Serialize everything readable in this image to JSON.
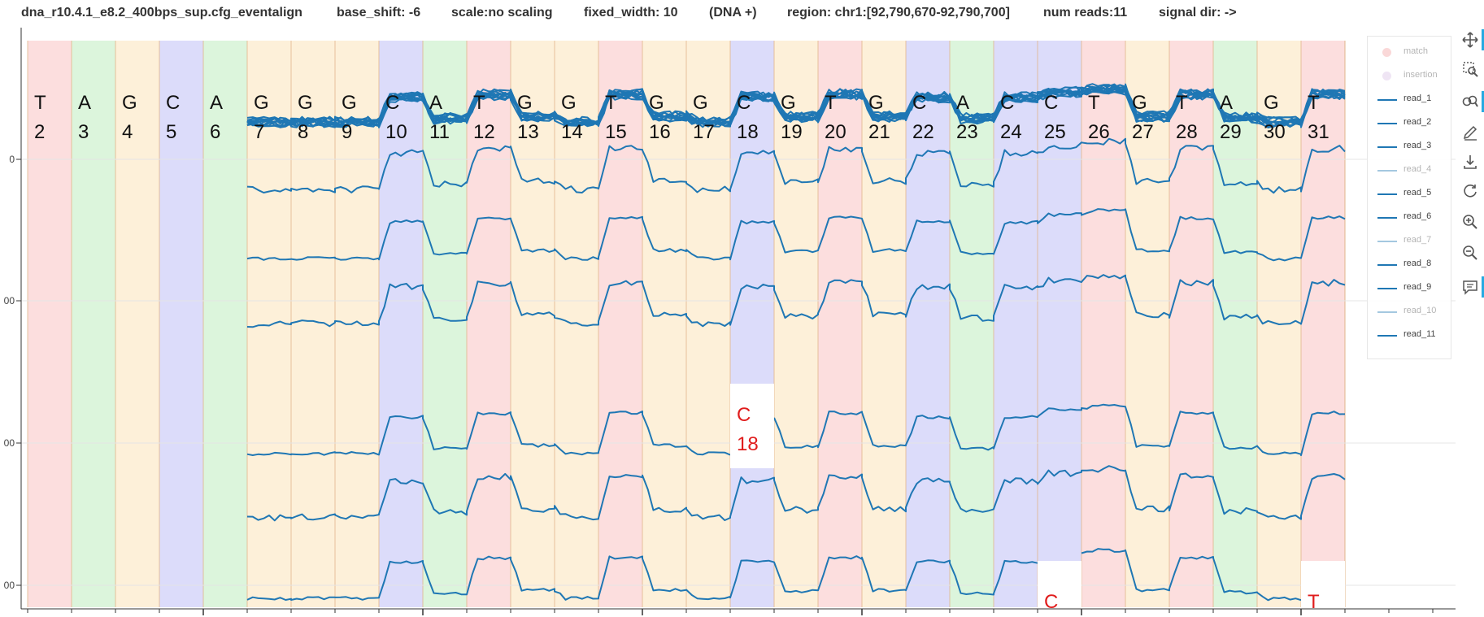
{
  "header": {
    "config": "dna_r10.4.1_e8.2_400bps_sup.cfg_eventalign",
    "base_shift": "base_shift: -6",
    "scale": "scale:no scaling",
    "fixed_width": "fixed_width: 10",
    "strand": "(DNA +)",
    "region": "region: chr1:[92,790,670-92,790,700]",
    "num_reads": "num reads:11",
    "signal_dir": "signal dir: ->"
  },
  "colors": {
    "A": "#dcf5dc",
    "C": "#dcdcfa",
    "G": "#fdf0d9",
    "T": "#fcdede",
    "signal": "#1f77b4",
    "grid": "#e5e5e5",
    "deletion_text": "#e01c1c",
    "toolbar_accent": "#26aae1"
  },
  "sequence": [
    {
      "base": "T",
      "pos": "2"
    },
    {
      "base": "A",
      "pos": "3"
    },
    {
      "base": "G",
      "pos": "4"
    },
    {
      "base": "C",
      "pos": "5"
    },
    {
      "base": "A",
      "pos": "6"
    },
    {
      "base": "G",
      "pos": "7"
    },
    {
      "base": "G",
      "pos": "8"
    },
    {
      "base": "G",
      "pos": "9"
    },
    {
      "base": "C",
      "pos": "10"
    },
    {
      "base": "A",
      "pos": "11"
    },
    {
      "base": "T",
      "pos": "12"
    },
    {
      "base": "G",
      "pos": "13"
    },
    {
      "base": "G",
      "pos": "14"
    },
    {
      "base": "T",
      "pos": "15"
    },
    {
      "base": "G",
      "pos": "16"
    },
    {
      "base": "G",
      "pos": "17"
    },
    {
      "base": "C",
      "pos": "18"
    },
    {
      "base": "G",
      "pos": "19"
    },
    {
      "base": "T",
      "pos": "20"
    },
    {
      "base": "G",
      "pos": "21"
    },
    {
      "base": "C",
      "pos": "22"
    },
    {
      "base": "A",
      "pos": "23"
    },
    {
      "base": "C",
      "pos": "24"
    },
    {
      "base": "C",
      "pos": "25"
    },
    {
      "base": "T",
      "pos": "26"
    },
    {
      "base": "G",
      "pos": "27"
    },
    {
      "base": "T",
      "pos": "28"
    },
    {
      "base": "A",
      "pos": "29"
    },
    {
      "base": "G",
      "pos": "30"
    },
    {
      "base": "T",
      "pos": "31"
    }
  ],
  "y_tick_labels": [
    "0",
    "00",
    "00",
    "00"
  ],
  "deletions": [
    {
      "base": "C",
      "pos": "18",
      "row": 3
    },
    {
      "base": "C",
      "pos": "",
      "row": 4
    },
    {
      "base": "T",
      "pos": "",
      "row": 4
    }
  ],
  "legend": [
    {
      "label": "match",
      "kind": "dot",
      "color": "#f4a0a0",
      "muted": true
    },
    {
      "label": "insertion",
      "kind": "dot",
      "color": "#d9bfe6",
      "muted": true
    },
    {
      "label": "read_1",
      "kind": "line",
      "muted": false
    },
    {
      "label": "read_2",
      "kind": "line",
      "muted": false
    },
    {
      "label": "read_3",
      "kind": "line",
      "muted": false
    },
    {
      "label": "read_4",
      "kind": "line",
      "muted": true
    },
    {
      "label": "read_5",
      "kind": "line",
      "muted": false
    },
    {
      "label": "read_6",
      "kind": "line",
      "muted": false
    },
    {
      "label": "read_7",
      "kind": "line",
      "muted": true
    },
    {
      "label": "read_8",
      "kind": "line",
      "muted": false
    },
    {
      "label": "read_9",
      "kind": "line",
      "muted": false
    },
    {
      "label": "read_10",
      "kind": "line",
      "muted": true
    },
    {
      "label": "read_11",
      "kind": "line",
      "muted": false
    }
  ],
  "toolbar": [
    {
      "name": "pan-tool",
      "icon": "pan-icon",
      "active": true
    },
    {
      "name": "box-zoom-tool",
      "icon": "box-zoom-icon",
      "active": false
    },
    {
      "name": "wheel-zoom-tool",
      "icon": "wheel-zoom-icon",
      "active": true
    },
    {
      "name": "freehand-draw-tool",
      "icon": "pencil-icon",
      "active": false
    },
    {
      "name": "save-tool",
      "icon": "save-icon",
      "active": false
    },
    {
      "name": "reset-tool",
      "icon": "reset-icon",
      "active": false
    },
    {
      "name": "zoom-in-tool",
      "icon": "zoom-in-icon",
      "active": false
    },
    {
      "name": "zoom-out-tool",
      "icon": "zoom-out-icon",
      "active": false
    },
    {
      "name": "hover-tool",
      "icon": "hover-icon",
      "active": true
    }
  ]
}
